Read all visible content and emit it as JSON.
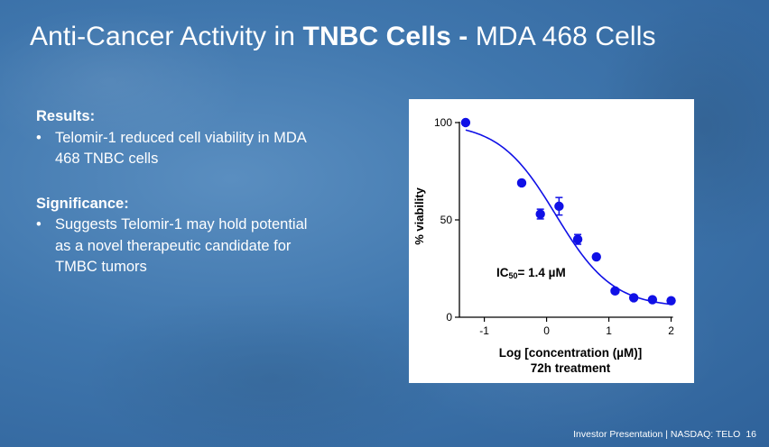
{
  "slide": {
    "title_prefix": "Anti-Cancer Activity in ",
    "title_bold": "TNBC Cells - ",
    "title_suffix": "MDA 468 Cells"
  },
  "results": {
    "heading": "Results:",
    "bullets": [
      "Telomir-1 reduced cell viability in MDA 468 TNBC cells"
    ]
  },
  "significance": {
    "heading": "Significance:",
    "bullets": [
      "Suggests Telomir-1 may hold potential as a novel therapeutic candidate for TMBC tumors"
    ]
  },
  "footer": {
    "text": "Investor Presentation | NASDAQ: TELO",
    "page_number": "16"
  },
  "chart_data": {
    "type": "scatter",
    "ylabel": "% viability",
    "xlabel": "Log [concentration (µM)]",
    "xlabel_line2": "72h treatment",
    "annotation": "IC50= 1.4 µM",
    "xlim": [
      -1.4,
      2.05
    ],
    "ylim": [
      0,
      100
    ],
    "x_ticks": [
      -1,
      0,
      1,
      2
    ],
    "y_ticks": [
      0,
      50,
      100
    ],
    "series": [
      {
        "points": [
          {
            "x": -1.3,
            "y": 100
          },
          {
            "x": -0.4,
            "y": 69
          },
          {
            "x": -0.1,
            "y": 53,
            "err": 2.5
          },
          {
            "x": 0.2,
            "y": 57,
            "err": 4.5
          },
          {
            "x": 0.5,
            "y": 40,
            "err": 2.5
          },
          {
            "x": 0.8,
            "y": 31
          },
          {
            "x": 1.1,
            "y": 13.5
          },
          {
            "x": 1.4,
            "y": 10
          },
          {
            "x": 1.7,
            "y": 9
          },
          {
            "x": 2.0,
            "y": 8.5
          }
        ],
        "fit": {
          "top": 100,
          "bottom": 5,
          "log_ic50": 0.15,
          "hill": -0.95,
          "x_from": -1.3,
          "x_to": 2.0
        }
      }
    ],
    "colors": {
      "marker": "#1010e6",
      "axis": "#000000"
    }
  }
}
